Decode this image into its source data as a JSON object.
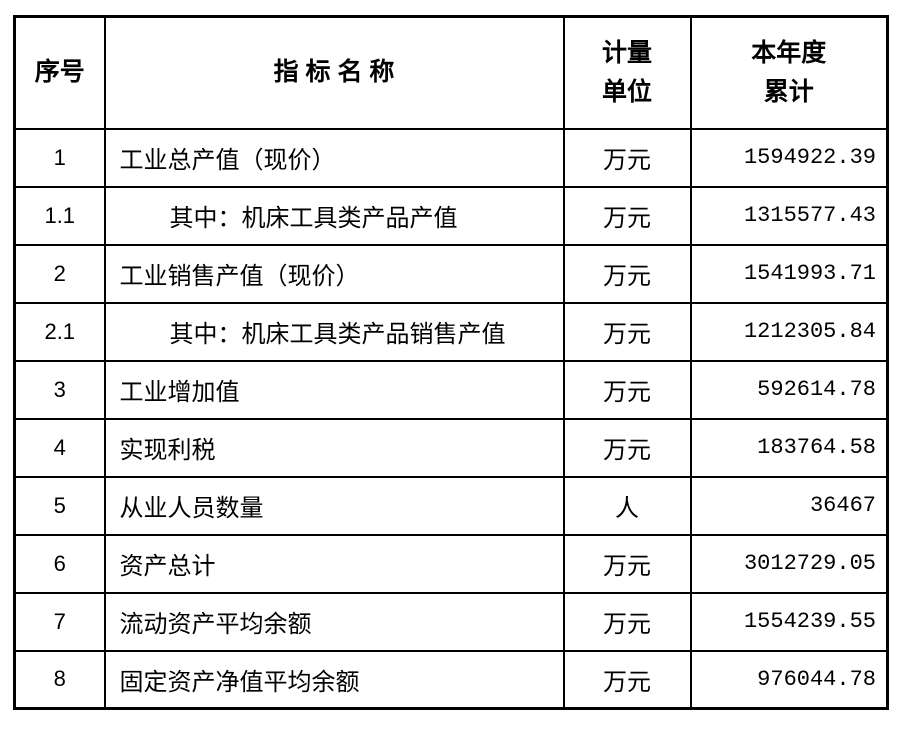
{
  "table": {
    "headers": {
      "serial": "序号",
      "indicator": "指 标 名 称",
      "unit_line1": "计量",
      "unit_line2": "单位",
      "total_line1": "本年度",
      "total_line2": "累计"
    },
    "rows": [
      {
        "no": "1",
        "name": "工业总产值（现价）",
        "unit": "万元",
        "value": "1594922.39"
      },
      {
        "no": "1.1",
        "name": "其中：机床工具类产品产值",
        "unit": "万元",
        "value": "1315577.43"
      },
      {
        "no": "2",
        "name": "工业销售产值（现价）",
        "unit": "万元",
        "value": "1541993.71"
      },
      {
        "no": "2.1",
        "name": "其中：机床工具类产品销售产值",
        "unit": "万元",
        "value": "1212305.84"
      },
      {
        "no": "3",
        "name": "工业增加值",
        "unit": "万元",
        "value": "592614.78"
      },
      {
        "no": "4",
        "name": "实现利税",
        "unit": "万元",
        "value": "183764.58"
      },
      {
        "no": "5",
        "name": "从业人员数量",
        "unit": "人",
        "value": "36467"
      },
      {
        "no": "6",
        "name": "资产总计",
        "unit": "万元",
        "value": "3012729.05"
      },
      {
        "no": "7",
        "name": "流动资产平均余额",
        "unit": "万元",
        "value": "1554239.55"
      },
      {
        "no": "8",
        "name": "固定资产净值平均余额",
        "unit": "万元",
        "value": "976044.78"
      }
    ]
  },
  "colors": {
    "border": "#000000",
    "background": "#ffffff",
    "text": "#000000"
  }
}
